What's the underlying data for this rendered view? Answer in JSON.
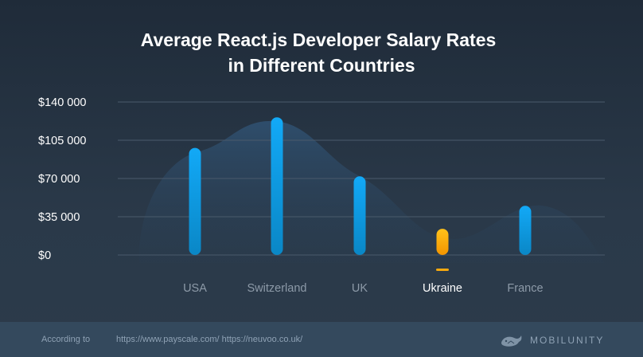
{
  "chart_data": {
    "type": "bar",
    "title_lines": [
      "Average React.js Developer Salary Rates",
      "in Different Countries"
    ],
    "categories": [
      "USA",
      "Switzerland",
      "UK",
      "Ukraine",
      "France"
    ],
    "values": [
      98000,
      126000,
      72000,
      24000,
      45000
    ],
    "highlight": "Ukraine",
    "ylim": [
      0,
      140000
    ],
    "yticks": [
      0,
      35000,
      70000,
      105000,
      140000
    ],
    "ytick_labels": [
      "$0",
      "$35 000",
      "$70 000",
      "$105 000",
      "$140 000"
    ],
    "grid": true,
    "colors": {
      "bar": "#0c9be6",
      "bar_highlight": "#f7a90f"
    }
  },
  "footer": {
    "source_label": "According to",
    "sources": "https://www.payscale.com/ https://neuvoo.co.uk/",
    "brand": "MOBILUNITY",
    "brand_icon": "whale-icon"
  }
}
